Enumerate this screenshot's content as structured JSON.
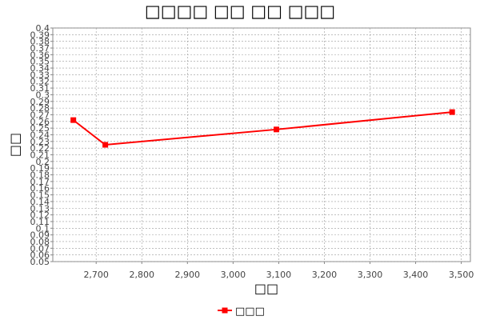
{
  "chart_data": {
    "type": "line",
    "title": "□□□□ □□ □□ □□□",
    "xlabel": "□□",
    "ylabel": "□□",
    "xlim": [
      2605,
      3520
    ],
    "ylim": [
      0.05,
      0.4
    ],
    "x_ticks": [
      2700,
      2800,
      2900,
      3000,
      3100,
      3200,
      3300,
      3400,
      3500
    ],
    "x_tick_labels": [
      "2,700",
      "2,800",
      "2,900",
      "3,000",
      "3,100",
      "3,200",
      "3,300",
      "3,400",
      "3,500"
    ],
    "y_ticks": [
      0.05,
      0.06,
      0.07,
      0.08,
      0.09,
      0.1,
      0.11,
      0.12,
      0.13,
      0.14,
      0.15,
      0.16,
      0.17,
      0.18,
      0.19,
      0.2,
      0.21,
      0.22,
      0.23,
      0.24,
      0.25,
      0.26,
      0.27,
      0.28,
      0.29,
      0.3,
      0.31,
      0.32,
      0.33,
      0.34,
      0.35,
      0.36,
      0.37,
      0.38,
      0.39,
      0.4
    ],
    "y_tick_labels": [
      "0.05",
      "0.06",
      "0.07",
      "0.08",
      "0.09",
      "0.1",
      "0.11",
      "0.12",
      "0.13",
      "0.14",
      "0.15",
      "0.16",
      "0.17",
      "0.18",
      "0.19",
      "0.2",
      "0.21",
      "0.22",
      "0.23",
      "0.24",
      "0.25",
      "0.26",
      "0.27",
      "0.28",
      "0.29",
      "0.3",
      "0.31",
      "0.32",
      "0.33",
      "0.34",
      "0.35",
      "0.36",
      "0.37",
      "0.38",
      "0.39",
      "0.4"
    ],
    "grid": true,
    "legend_position": "bottom-center",
    "series": [
      {
        "name": "□□□",
        "color": "#ff0000",
        "marker": "square",
        "points": [
          {
            "x": 2650,
            "y": 0.262
          },
          {
            "x": 2720,
            "y": 0.225
          },
          {
            "x": 3095,
            "y": 0.248
          },
          {
            "x": 3480,
            "y": 0.274
          }
        ]
      }
    ]
  }
}
